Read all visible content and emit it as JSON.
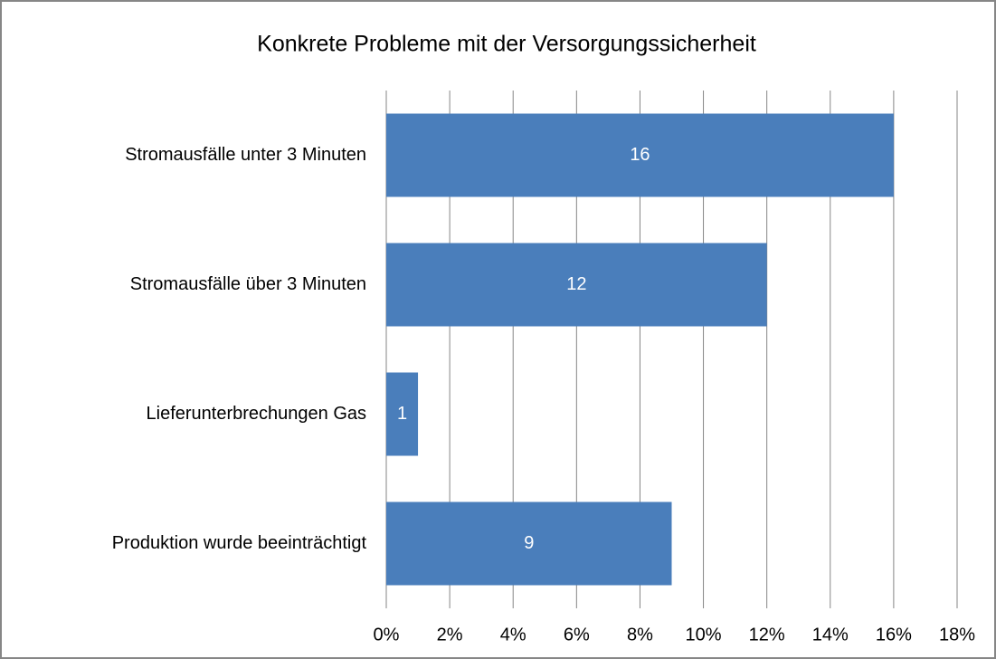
{
  "chart_data": {
    "type": "hbar",
    "title": "Konkrete Probleme mit der Versorgungssicherheit",
    "categories": [
      "Stromausfälle unter 3 Minuten",
      "Stromausfälle über 3 Minuten",
      "Lieferunterbrechungen Gas",
      "Produktion wurde beeinträchtigt"
    ],
    "values": [
      16,
      12,
      1,
      9
    ],
    "color": "#4a7ebb",
    "xlim": [
      0,
      18
    ],
    "xticks": [
      {
        "value": 0,
        "label": "0%"
      },
      {
        "value": 2,
        "label": "2%"
      },
      {
        "value": 4,
        "label": "4%"
      },
      {
        "value": 6,
        "label": "6%"
      },
      {
        "value": 8,
        "label": "8%"
      },
      {
        "value": 10,
        "label": "10%"
      },
      {
        "value": 12,
        "label": "12%"
      },
      {
        "value": 14,
        "label": "14%"
      },
      {
        "value": 16,
        "label": "16%"
      },
      {
        "value": 18,
        "label": "18%"
      }
    ],
    "grid": true
  }
}
